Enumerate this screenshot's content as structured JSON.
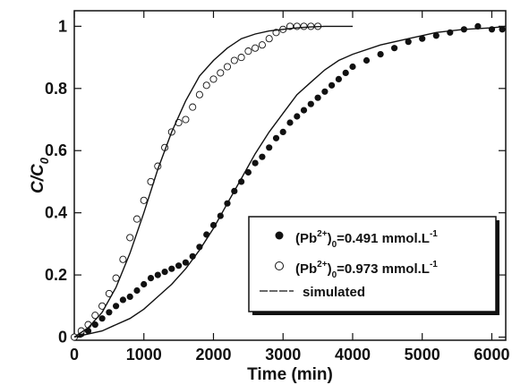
{
  "chart_data": {
    "type": "scatter",
    "xlabel": "Time (min)",
    "ylabel": {
      "main": "C/C",
      "sub": "0"
    },
    "xlim": [
      0,
      6200
    ],
    "ylim": [
      -0.01,
      1.05
    ],
    "xticks": [
      "0",
      "1000",
      "2000",
      "3000",
      "4000",
      "5000",
      "6000"
    ],
    "xtick_values": [
      0,
      1000,
      2000,
      3000,
      4000,
      5000,
      6000
    ],
    "yticks": [
      "0",
      "0.2",
      "0.4",
      "0.6",
      "0.8",
      "1"
    ],
    "ytick_values": [
      0,
      0.2,
      0.4,
      0.6,
      0.8,
      1
    ],
    "grid": false,
    "legend_position": "bottom-right",
    "legend": [
      {
        "marker": "filled-circle",
        "pre": "(Pb",
        "sup": "2+",
        "mid": ")",
        "sub": "0",
        "post": "=0.491 mmol.L",
        "sup2": "-1"
      },
      {
        "marker": "open-circle",
        "pre": "(Pb",
        "sup": "2+",
        "mid": ")",
        "sub": "0",
        "post": "=0.973 mmol.L",
        "sup2": "-1"
      },
      {
        "marker": "line",
        "label": "simulated"
      }
    ],
    "series": [
      {
        "name": "(Pb2+)0=0.491 mmol.L-1",
        "marker": "filled",
        "x": [
          0,
          100,
          200,
          300,
          400,
          500,
          600,
          700,
          800,
          900,
          1000,
          1100,
          1200,
          1300,
          1400,
          1500,
          1600,
          1700,
          1800,
          1900,
          2000,
          2100,
          2200,
          2300,
          2400,
          2500,
          2600,
          2700,
          2800,
          2900,
          3000,
          3100,
          3200,
          3300,
          3400,
          3500,
          3600,
          3700,
          3800,
          3900,
          4000,
          4200,
          4400,
          4600,
          4800,
          5000,
          5200,
          5400,
          5600,
          5800,
          6000,
          6150
        ],
        "y": [
          0.0,
          0.01,
          0.02,
          0.04,
          0.06,
          0.08,
          0.1,
          0.12,
          0.13,
          0.15,
          0.17,
          0.19,
          0.2,
          0.21,
          0.22,
          0.23,
          0.24,
          0.26,
          0.29,
          0.33,
          0.36,
          0.39,
          0.43,
          0.47,
          0.5,
          0.53,
          0.56,
          0.58,
          0.61,
          0.64,
          0.66,
          0.69,
          0.71,
          0.73,
          0.75,
          0.77,
          0.79,
          0.81,
          0.83,
          0.85,
          0.87,
          0.89,
          0.91,
          0.93,
          0.95,
          0.96,
          0.97,
          0.98,
          0.99,
          1.0,
          0.99,
          0.99
        ]
      },
      {
        "name": "(Pb2+)0=0.973 mmol.L-1",
        "marker": "open",
        "x": [
          0,
          100,
          200,
          300,
          400,
          500,
          600,
          700,
          800,
          900,
          1000,
          1100,
          1200,
          1300,
          1400,
          1500,
          1600,
          1700,
          1800,
          1900,
          2000,
          2100,
          2200,
          2300,
          2400,
          2500,
          2600,
          2700,
          2800,
          2900,
          3000,
          3100,
          3200,
          3300,
          3400,
          3500
        ],
        "y": [
          0.0,
          0.02,
          0.04,
          0.07,
          0.1,
          0.14,
          0.19,
          0.25,
          0.32,
          0.38,
          0.44,
          0.5,
          0.55,
          0.61,
          0.66,
          0.69,
          0.7,
          0.74,
          0.78,
          0.81,
          0.83,
          0.85,
          0.87,
          0.89,
          0.9,
          0.92,
          0.93,
          0.94,
          0.96,
          0.98,
          0.99,
          1.0,
          1.0,
          1.0,
          1.0,
          1.0
        ]
      },
      {
        "name": "simulated (0.491)",
        "marker": "line",
        "x": [
          0,
          200,
          400,
          600,
          800,
          1000,
          1200,
          1400,
          1600,
          1800,
          2000,
          2200,
          2400,
          2600,
          2800,
          3000,
          3200,
          3400,
          3600,
          3800,
          4000,
          4400,
          4800,
          5200,
          5600,
          6000,
          6200
        ],
        "y": [
          0.0,
          0.01,
          0.02,
          0.04,
          0.06,
          0.09,
          0.13,
          0.17,
          0.22,
          0.28,
          0.35,
          0.43,
          0.51,
          0.59,
          0.66,
          0.72,
          0.78,
          0.82,
          0.86,
          0.89,
          0.91,
          0.94,
          0.96,
          0.98,
          0.99,
          0.995,
          1.0
        ]
      },
      {
        "name": "simulated (0.973)",
        "marker": "line",
        "x": [
          0,
          200,
          400,
          600,
          800,
          1000,
          1200,
          1400,
          1600,
          1800,
          2000,
          2200,
          2400,
          2600,
          2800,
          3000,
          3200,
          3400,
          3600,
          3800,
          4000
        ],
        "y": [
          0.0,
          0.03,
          0.08,
          0.16,
          0.27,
          0.4,
          0.54,
          0.66,
          0.76,
          0.84,
          0.89,
          0.93,
          0.96,
          0.975,
          0.985,
          0.99,
          0.995,
          0.998,
          1.0,
          1.0,
          1.0
        ]
      }
    ]
  }
}
